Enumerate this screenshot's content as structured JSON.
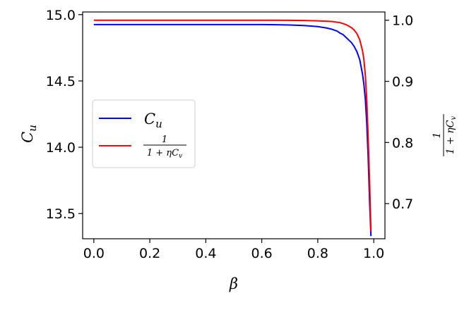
{
  "chart_data": {
    "type": "line",
    "xlabel": "β",
    "ylabel_left": "C",
    "ylabel_left_sub": "u",
    "ylabel_right": {
      "numerator": "1",
      "denominator": "1 + ηC",
      "denominator_sub": "v"
    },
    "xlim": [
      -0.04,
      1.04
    ],
    "ylim_left": [
      13.31,
      15.02
    ],
    "ylim_right": [
      0.6425,
      1.0135
    ],
    "x_ticks": [
      "0.0",
      "0.2",
      "0.4",
      "0.6",
      "0.8",
      "1.0"
    ],
    "y_left_ticks": [
      "13.5",
      "14.0",
      "14.5",
      "15.0"
    ],
    "y_right_ticks": [
      "0.7",
      "0.8",
      "0.9",
      "1.0"
    ],
    "grid": false,
    "legend_position": "center-left",
    "series": [
      {
        "name": "C",
        "name_sub": "u",
        "axis": "left",
        "color": "#0000ff",
        "x": [
          0.0,
          0.1,
          0.2,
          0.3,
          0.4,
          0.5,
          0.6,
          0.65,
          0.7,
          0.75,
          0.8,
          0.83,
          0.85,
          0.87,
          0.88,
          0.89,
          0.9,
          0.91,
          0.92,
          0.93,
          0.94,
          0.95,
          0.96,
          0.965,
          0.97,
          0.975,
          0.98,
          0.985,
          0.99
        ],
        "values": [
          14.925,
          14.925,
          14.925,
          14.925,
          14.925,
          14.925,
          14.925,
          14.924,
          14.922,
          14.918,
          14.91,
          14.9,
          14.89,
          14.875,
          14.86,
          14.85,
          14.83,
          14.81,
          14.79,
          14.76,
          14.72,
          14.66,
          14.55,
          14.47,
          14.36,
          14.18,
          13.93,
          13.6,
          13.33
        ]
      },
      {
        "name_numerator": "1",
        "name_denominator": "1 + ηC",
        "name_denominator_sub": "v",
        "axis": "right",
        "color": "#ff0000",
        "x": [
          0.0,
          0.1,
          0.2,
          0.3,
          0.4,
          0.5,
          0.6,
          0.65,
          0.7,
          0.75,
          0.8,
          0.85,
          0.88,
          0.9,
          0.92,
          0.93,
          0.94,
          0.95,
          0.96,
          0.965,
          0.97,
          0.975,
          0.98,
          0.985,
          0.99
        ],
        "values": [
          1.0,
          1.0,
          1.0,
          1.0,
          1.0,
          1.0,
          1.0,
          0.9999,
          0.9998,
          0.9995,
          0.999,
          0.998,
          0.996,
          0.993,
          0.988,
          0.984,
          0.978,
          0.968,
          0.95,
          0.935,
          0.91,
          0.87,
          0.81,
          0.74,
          0.655
        ]
      }
    ]
  }
}
